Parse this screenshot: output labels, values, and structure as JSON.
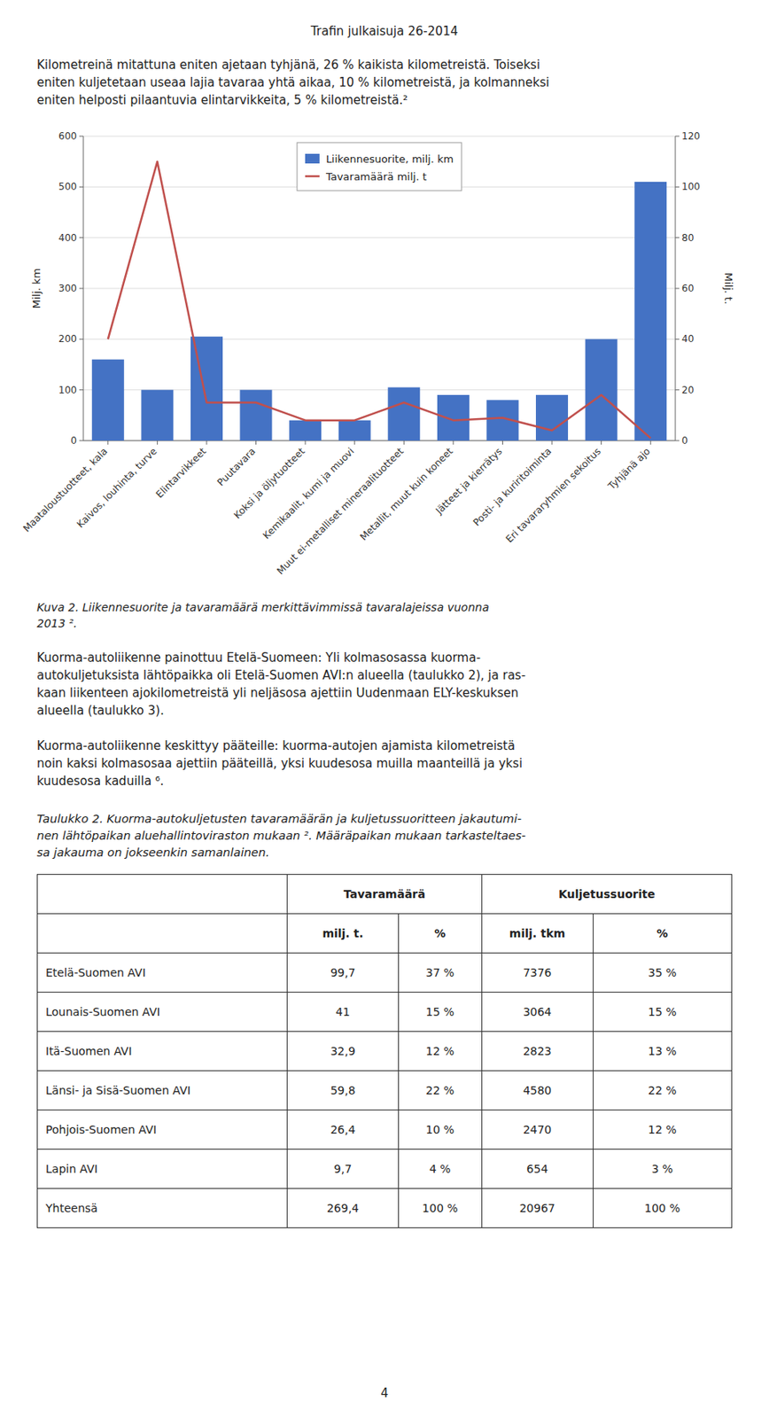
{
  "page": {
    "header": "Trafin julkaisuja 26-2014",
    "para1_lines": [
      "Kilometreinä mitattuna eniten ajetaan tyhjänä, 26 % kaikista kilometreistä. Toiseksi",
      "eniten kuljetetaan useaa lajia tavaraa yhtä aikaa, 10 % kilometreistä, ja kolmanneksi",
      "eniten helposti pilaantuvia elintarvikkeita, 5 % kilometreistä.²"
    ],
    "caption_lines": [
      "Kuva 2. Liikennesuorite ja tavaramäärä merkittävimmissä tavaralajeissa vuonna",
      "2013 ²."
    ],
    "para2_lines": [
      "Kuorma-autoliikenne painottuu Etelä-Suomeen: Yli kolmasosassa kuorma-",
      "autokuljetuksista lähtöpaikka oli Etelä-Suomen AVI:n alueella (taulukko 2), ja ras-",
      "kaan liikenteen ajokilometreistä yli neljäsosa ajettiin Uudenmaan ELY-keskuksen",
      "alueella (taulukko 3)."
    ],
    "para3_lines": [
      "Kuorma-autoliikenne keskittyy pääteille: kuorma-autojen ajamista kilometreistä",
      "noin kaksi kolmasosaa ajettiin pääteillä, yksi kuudesosa muilla maanteillä ja yksi",
      "kuudesosa kaduilla ⁶."
    ],
    "table_title_lines": [
      "Taulukko 2. Kuorma-autokuljetusten tavaramäärän ja kuljetussuoritteen jakautumi-",
      "nen lähtöpaikan aluehallintoviraston mukaan ². Määräpaikan mukaan tarkasteltaes-",
      "sa jakauma on jokseenkin samanlainen."
    ],
    "page_number": "4"
  },
  "chart_data": {
    "type": "bar",
    "categories": [
      "Maataloustuotteet, kala",
      "Kaivos, louhinta, turve",
      "Elintarvikkeet",
      "Puutavara",
      "Koksi ja öljytuotteet",
      "Kemikaalit, kumi ja muovi",
      "Muut ei-metalliset mineraalituotteet",
      "Metallit, muut kuin koneet",
      "Jätteet ja kierrätys",
      "Posti- ja kuriritoiminta",
      "Eri tavararyhmien sekoitus",
      "Tyhjänä ajo"
    ],
    "series": [
      {
        "name": "Liikennesuorite, milj. km",
        "type": "bar",
        "color": "#4472C4",
        "values": [
          160,
          100,
          205,
          100,
          40,
          40,
          105,
          90,
          80,
          90,
          200,
          510
        ]
      },
      {
        "name": "Tavaramäärä milj. t",
        "type": "line",
        "axis": "y2",
        "color": "#C0504D",
        "values": [
          40,
          110,
          15,
          15,
          8,
          8,
          15,
          8,
          9,
          4,
          18,
          1
        ]
      }
    ],
    "ylabel": "Milj. km",
    "y2label": "Milj. t.",
    "ylim": [
      0,
      600
    ],
    "yticks": [
      0,
      100,
      200,
      300,
      400,
      500,
      600
    ],
    "y2lim": [
      0,
      120
    ],
    "y2ticks": [
      0,
      20,
      40,
      60,
      80,
      100,
      120
    ],
    "grid": true,
    "legend": "upper center"
  },
  "table": {
    "column_groups": [
      "Tavaramäärä",
      "Kuljetussuorite"
    ],
    "subheaders": [
      "milj. t.",
      "%",
      "milj. tkm",
      "%"
    ],
    "rows": [
      [
        "Etelä-Suomen AVI",
        "99,7",
        "37 %",
        "7376",
        "35 %"
      ],
      [
        "Lounais-Suomen AVI",
        "41",
        "15 %",
        "3064",
        "15 %"
      ],
      [
        "Itä-Suomen AVI",
        "32,9",
        "12 %",
        "2823",
        "13 %"
      ],
      [
        "Länsi- ja Sisä-Suomen AVI",
        "59,8",
        "22 %",
        "4580",
        "22 %"
      ],
      [
        "Pohjois-Suomen AVI",
        "26,4",
        "10 %",
        "2470",
        "12 %"
      ],
      [
        "Lapin AVI",
        "9,7",
        "4 %",
        "654",
        "3 %"
      ],
      [
        "Yhteensä",
        "269,4",
        "100 %",
        "20967",
        "100 %"
      ]
    ]
  }
}
